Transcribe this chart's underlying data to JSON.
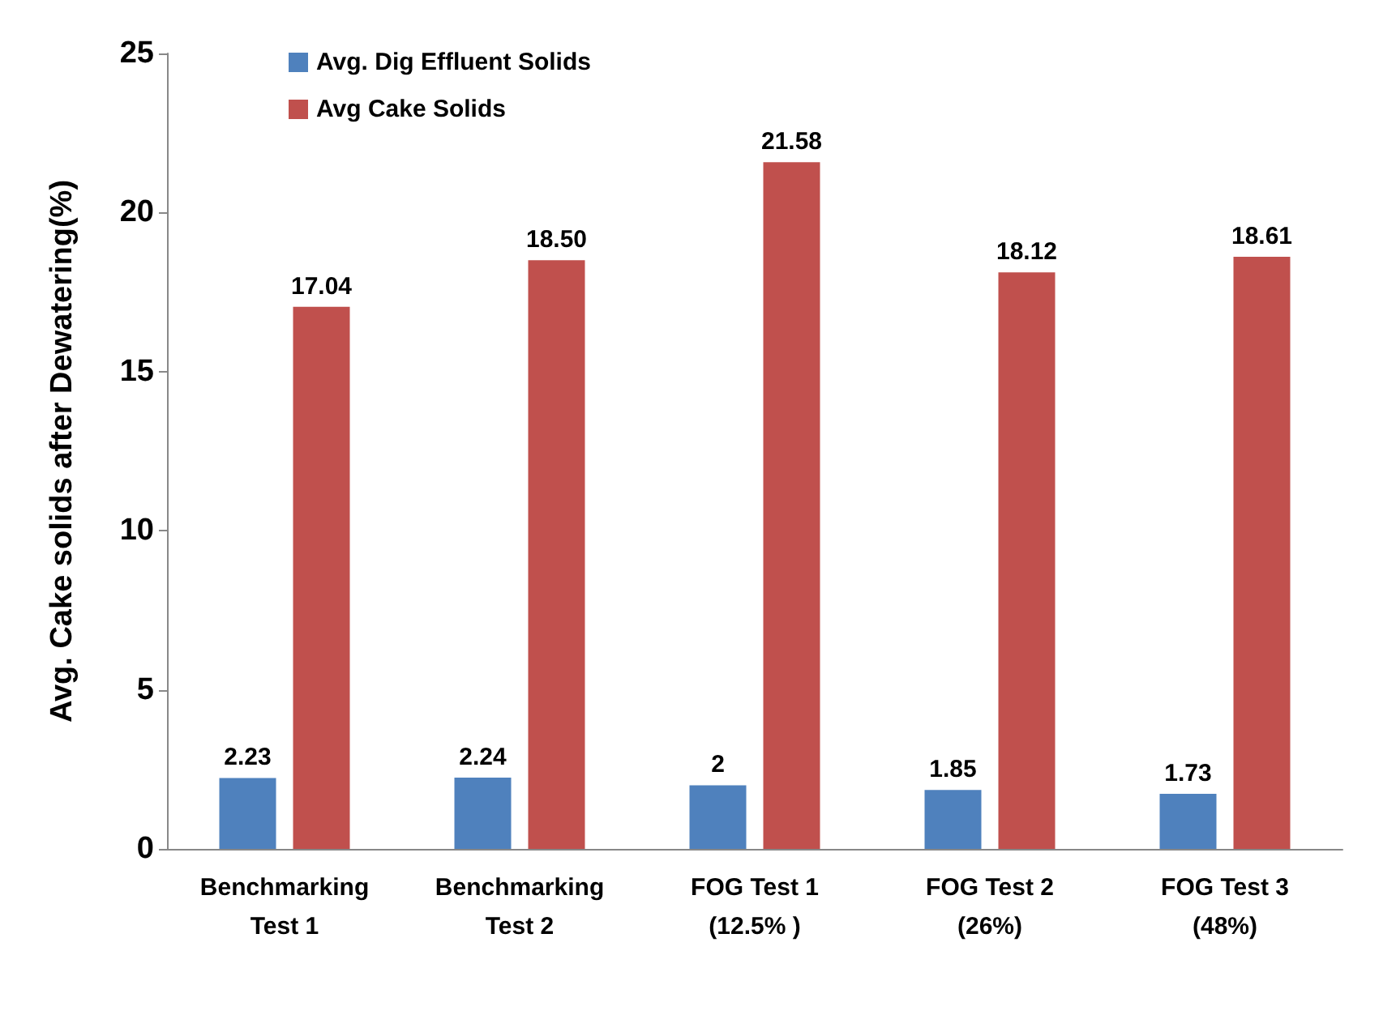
{
  "chart_data": {
    "type": "bar",
    "ylabel": "Avg. Cake solids after Dewatering(%)",
    "categories": [
      "Benchmarking\nTest 1",
      "Benchmarking\nTest 2",
      "FOG Test 1\n(12.5% )",
      "FOG Test 2\n(26%)",
      "FOG Test 3\n(48%)"
    ],
    "series": [
      {
        "name": "Avg. Dig Effluent Solids",
        "color": "#4f81bd",
        "values": [
          2.23,
          2.24,
          2,
          1.85,
          1.73
        ],
        "value_labels": [
          "2.23",
          "2.24",
          "2",
          "1.85",
          "1.73"
        ]
      },
      {
        "name": "Avg Cake Solids",
        "color": "#c0504d",
        "values": [
          17.04,
          18.5,
          21.58,
          18.12,
          18.61
        ],
        "value_labels": [
          "17.04",
          "18.50",
          "21.58",
          "18.12",
          "18.61"
        ]
      }
    ],
    "ylim": [
      0,
      25
    ],
    "yticks": [
      0,
      5,
      10,
      15,
      20,
      25
    ],
    "grid": false,
    "legend": "top left"
  }
}
